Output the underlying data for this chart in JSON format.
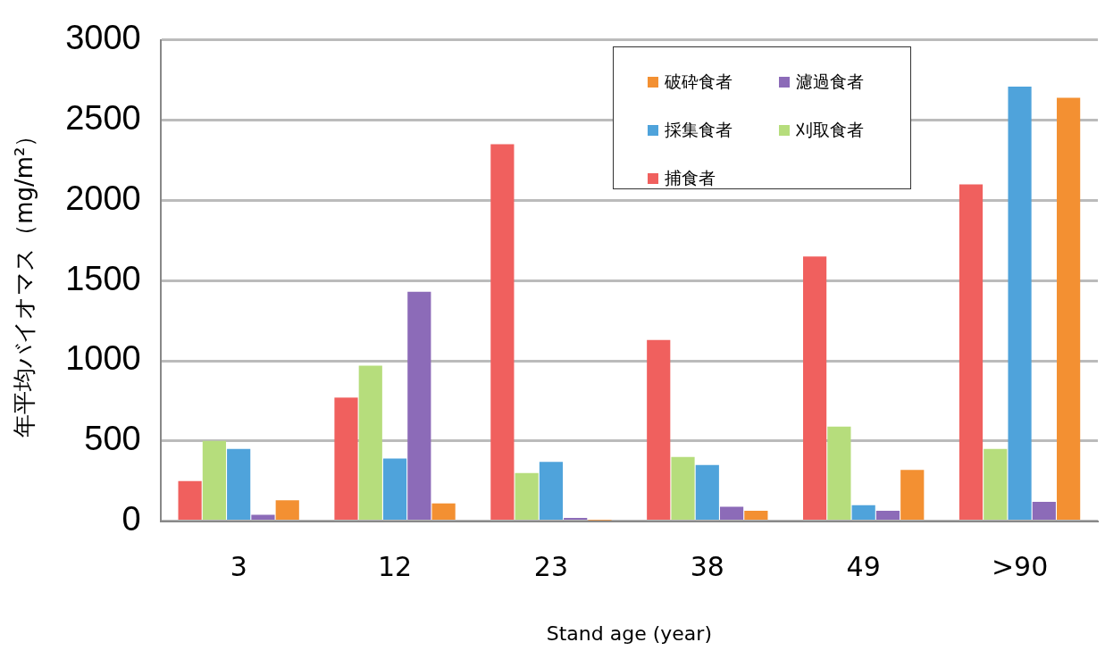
{
  "chart_data": {
    "type": "bar",
    "xlabel": "Stand age (year)",
    "ylabel": "年平均バイオマス（mg/m²）",
    "categories": [
      "3",
      "12",
      "23",
      "38",
      "49",
      ">90"
    ],
    "series": [
      {
        "name": "捕食者",
        "color": "#f0605e",
        "values": [
          250,
          770,
          2350,
          1130,
          1650,
          2100
        ]
      },
      {
        "name": "刈取食者",
        "color": "#b6dd7c",
        "values": [
          500,
          970,
          300,
          400,
          590,
          450
        ]
      },
      {
        "name": "採集食者",
        "color": "#4fa3db",
        "values": [
          450,
          390,
          370,
          350,
          100,
          2710
        ]
      },
      {
        "name": "濾過食者",
        "color": "#8c6bb8",
        "values": [
          40,
          1430,
          20,
          90,
          65,
          120
        ]
      },
      {
        "name": "破砕食者",
        "color": "#f39032",
        "values": [
          130,
          110,
          5,
          65,
          320,
          2640
        ]
      }
    ],
    "ylim": [
      0,
      3000
    ],
    "yticks": [
      0,
      500,
      1000,
      1500,
      2000,
      2500,
      3000
    ],
    "grid": "y",
    "legend": "top right"
  }
}
